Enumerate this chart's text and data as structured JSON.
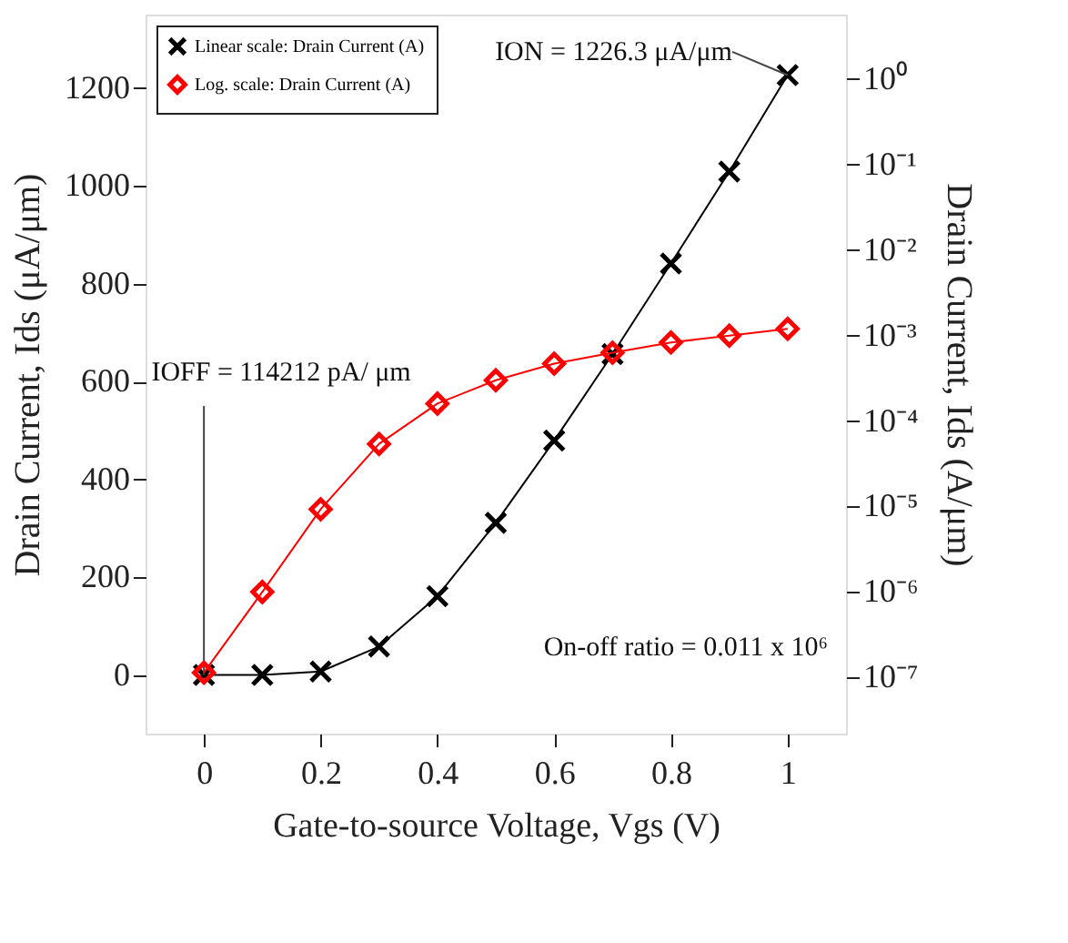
{
  "chart_data": {
    "type": "line",
    "xlabel": "Gate-to-source Voltage, Vgs (V)",
    "ylabel": "Drain Current, Ids (μA/μm)",
    "y2label": "Drain Current, Ids (A/μm)",
    "x": [
      0,
      0.1,
      0.2,
      0.3,
      0.4,
      0.5,
      0.6,
      0.7,
      0.8,
      0.9,
      1.0
    ],
    "series": [
      {
        "name": "Linear scale: Drain Current (A)",
        "color": "#000000",
        "marker": "cross",
        "values": [
          0,
          0,
          7,
          58,
          161,
          311,
          479,
          656,
          841,
          1029,
          1226.3
        ]
      },
      {
        "name": "Log. scale: Drain Current (A)",
        "color": "#ff0000",
        "marker": "diamond",
        "axis": "y2",
        "values": [
          1.14e-07,
          1e-06,
          9.3e-06,
          5.4e-05,
          0.00016,
          0.0003,
          0.00047,
          0.00063,
          0.00083,
          0.001,
          0.0012
        ]
      }
    ],
    "xlim": [
      -0.1,
      1.1
    ],
    "xticks": [
      0,
      0.2,
      0.4,
      0.6,
      0.8,
      1
    ],
    "ylim": [
      -120,
      1350
    ],
    "yticks": [
      0,
      200,
      400,
      600,
      800,
      1000,
      1200
    ],
    "y2lim": [
      2.2e-08,
      5.7
    ],
    "log": "y2",
    "y2ticks": [
      {
        "value": 1,
        "label": "10⁰"
      },
      {
        "value": 0.1,
        "label": "10⁻¹"
      },
      {
        "value": 0.01,
        "label": "10⁻²"
      },
      {
        "value": 0.001,
        "label": "10⁻³"
      },
      {
        "value": 0.0001,
        "label": "10⁻⁴"
      },
      {
        "value": 1e-05,
        "label": "10⁻⁵"
      },
      {
        "value": 1e-06,
        "label": "10⁻⁶"
      },
      {
        "value": 1e-07,
        "label": "10⁻⁷"
      }
    ],
    "annotations": [
      {
        "text": "ION = 1226.3 μA/μm",
        "x": 1.0,
        "y": 1226.3
      },
      {
        "text": "IOFF = 114212 pA/ μm",
        "x": 0,
        "y": 0
      },
      "On-off ratio = 0.011 x 10⁶"
    ],
    "grid": false,
    "legend": "top left",
    "line_style": "solid"
  }
}
